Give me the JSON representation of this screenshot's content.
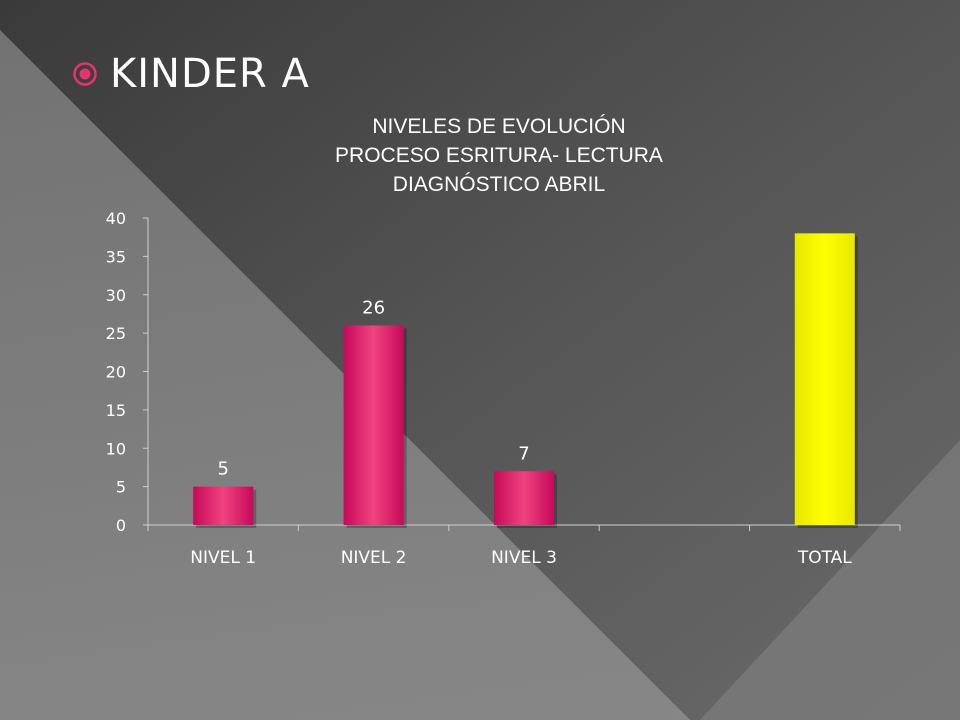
{
  "slide": {
    "heading": "KINDER A",
    "bullet_icon": "target-bullet-icon",
    "accent_color": "#e8336f"
  },
  "chart_data": {
    "type": "bar",
    "title_lines": [
      "NIVELES DE EVOLUCIÓN",
      "PROCESO ESRITURA- LECTURA",
      "DIAGNÓSTICO ABRIL"
    ],
    "categories": [
      "NIVEL 1",
      "NIVEL 2",
      "NIVEL 3",
      "",
      "TOTAL"
    ],
    "values": [
      5,
      26,
      7,
      null,
      38
    ],
    "data_labels": [
      "5",
      "26",
      "7",
      "",
      ""
    ],
    "bar_colors": [
      "#f0437f",
      "#f0437f",
      "#f0437f",
      "#f0437f",
      "#ffff00"
    ],
    "ylim": [
      0,
      40
    ],
    "yticks": [
      0,
      5,
      10,
      15,
      20,
      25,
      30,
      35,
      40
    ],
    "grid": false,
    "legend": "none"
  }
}
